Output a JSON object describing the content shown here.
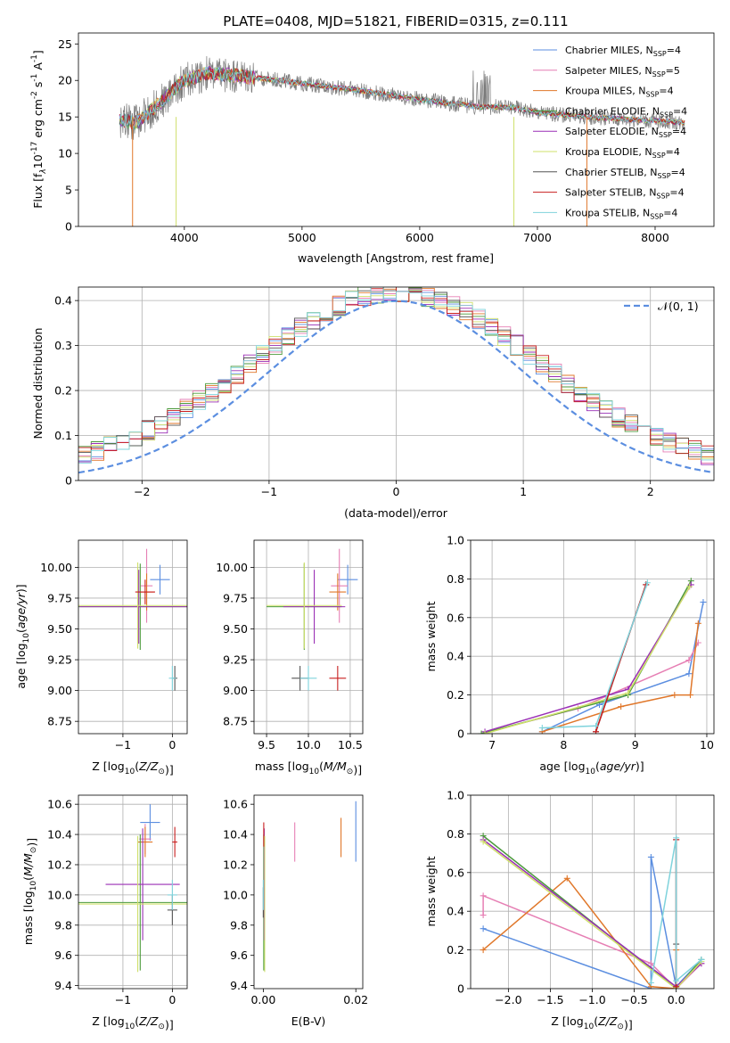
{
  "figure_title": "PLATE=0408, MJD=51821, FIBERID=0315, z=0.111",
  "colors": {
    "chabrier_miles": "#5b8ee0",
    "salpeter_miles": "#e67fb4",
    "kroupa_miles": "#e0772a",
    "chabrier_elodie": "#4c9a3c",
    "salpeter_elodie": "#9a2fb5",
    "kroupa_elodie": "#cfe06b",
    "chabrier_stelib": "#555555",
    "salpeter_stelib": "#c81e1e",
    "kroupa_stelib": "#7fd3dc",
    "gaussian": "#5b8ee0",
    "grid": "#b0b0b0"
  },
  "chart_data": [
    {
      "id": "spectrum",
      "type": "line",
      "title": "PLATE=0408, MJD=51821, FIBERID=0315, z=0.111",
      "xlabel": "wavelength [Angstrom, rest frame]",
      "ylabel_parts": [
        "Flux [f",
        "λ",
        "10",
        "-17",
        " erg cm",
        "-2",
        " s",
        "-1",
        " A",
        "-1",
        "]"
      ],
      "xlim": [
        3100,
        8500
      ],
      "ylim": [
        0,
        26.5
      ],
      "xticks": [
        4000,
        5000,
        6000,
        7000,
        8000
      ],
      "yticks": [
        0,
        5,
        10,
        15,
        20,
        25
      ],
      "grid": false,
      "legend_position": "upper-right",
      "legend": [
        {
          "label": "Chabrier MILES, N",
          "sub": "SSP",
          "suffix": "=4",
          "color_key": "chabrier_miles"
        },
        {
          "label": "Salpeter MILES, N",
          "sub": "SSP",
          "suffix": "=5",
          "color_key": "salpeter_miles"
        },
        {
          "label": "Kroupa MILES, N",
          "sub": "SSP",
          "suffix": "=4",
          "color_key": "kroupa_miles"
        },
        {
          "label": "Chabrier ELODIE, N",
          "sub": "SSP",
          "suffix": "=4",
          "color_key": "chabrier_elodie"
        },
        {
          "label": "Salpeter ELODIE, N",
          "sub": "SSP",
          "suffix": "=4",
          "color_key": "salpeter_elodie"
        },
        {
          "label": "Kroupa ELODIE, N",
          "sub": "SSP",
          "suffix": "=4",
          "color_key": "kroupa_elodie"
        },
        {
          "label": "Chabrier STELIB, N",
          "sub": "SSP",
          "suffix": "=4",
          "color_key": "chabrier_stelib"
        },
        {
          "label": "Salpeter STELIB, N",
          "sub": "SSP",
          "suffix": "=4",
          "color_key": "salpeter_stelib"
        },
        {
          "label": "Kroupa STELIB, N",
          "sub": "SSP",
          "suffix": "=4",
          "color_key": "kroupa_stelib"
        }
      ],
      "continuum": {
        "x": [
          3450,
          3600,
          3800,
          4000,
          4200,
          4500,
          5000,
          5500,
          6000,
          6500,
          6800,
          7000,
          7500,
          8000,
          8250
        ],
        "y": [
          14.5,
          14.3,
          17.0,
          20.0,
          21.0,
          20.6,
          19.6,
          18.6,
          17.4,
          16.4,
          16.3,
          15.6,
          14.9,
          14.5,
          14.2
        ]
      },
      "model_start": 3450,
      "model_end": 8250,
      "drops": [
        {
          "x": 3560,
          "color_key": "kroupa_miles"
        },
        {
          "x": 3930,
          "color_key": "kroupa_elodie"
        },
        {
          "x": 6800,
          "color_key": "kroupa_elodie"
        },
        {
          "x": 7420,
          "color_key": "kroupa_miles"
        }
      ]
    },
    {
      "id": "residuals",
      "type": "step",
      "xlabel": "(data-model)/error",
      "ylabel": "Normed distribution",
      "xlim": [
        -2.5,
        2.5
      ],
      "ylim": [
        0,
        0.43
      ],
      "xticks": [
        -2,
        -1,
        0,
        1,
        2
      ],
      "yticks": [
        0.0,
        0.1,
        0.2,
        0.3,
        0.4
      ],
      "grid": true,
      "legend_position": "upper-right",
      "gaussian_label": "𝒩(0, 1)",
      "bin_width": 0.1,
      "gaussian": {
        "mean": 0,
        "sigma": 1
      }
    },
    {
      "id": "age_vs_Z",
      "type": "errorbar",
      "xlabel": "Z [log10(Z/Z⊙)]",
      "ylabel": "age  [log10(age/yr)]",
      "xlim": [
        -1.9,
        0.3
      ],
      "ylim": [
        8.65,
        10.22
      ],
      "xticks": [
        -1,
        0
      ],
      "yticks": [
        8.75,
        9.0,
        9.25,
        9.5,
        9.75,
        10.0
      ],
      "grid": true,
      "points": [
        {
          "series": "chabrier_miles",
          "x": -0.25,
          "xerr": 0.2,
          "y": 9.9,
          "yerr": 0.12
        },
        {
          "series": "salpeter_miles",
          "x": -0.52,
          "xerr": 0.12,
          "y": 9.85,
          "yerr": 0.3
        },
        {
          "series": "kroupa_miles",
          "x": -0.52,
          "xerr": 0.15,
          "y": 9.8,
          "yerr": 0.15
        },
        {
          "series": "chabrier_elodie",
          "x": -0.65,
          "xerr": 1.25,
          "y": 9.68,
          "yerr": 0.35
        },
        {
          "series": "salpeter_elodie",
          "x": -0.68,
          "xerr": 1.2,
          "y": 9.68,
          "yerr": 0.3
        },
        {
          "series": "kroupa_elodie",
          "x": -0.7,
          "xerr": 1.25,
          "y": 9.69,
          "yerr": 0.35
        },
        {
          "series": "chabrier_stelib",
          "x": 0.05,
          "xerr": 0.05,
          "y": 9.1,
          "yerr": 0.1
        },
        {
          "series": "salpeter_stelib",
          "x": -0.55,
          "xerr": 0.2,
          "y": 9.8,
          "yerr": 0.1
        },
        {
          "series": "kroupa_stelib",
          "x": 0.0,
          "xerr": 0.07,
          "y": 9.1,
          "yerr": 0.1
        }
      ]
    },
    {
      "id": "age_vs_mass",
      "type": "errorbar",
      "xlabel": "mass [log10(M/M⊙)]",
      "ylabel": "",
      "xlim": [
        9.35,
        10.65
      ],
      "ylim": [
        8.65,
        10.22
      ],
      "xticks": [
        9.5,
        10.0,
        10.5
      ],
      "yticks": [
        8.75,
        9.0,
        9.25,
        9.5,
        9.75,
        10.0
      ],
      "grid": true,
      "points": [
        {
          "series": "chabrier_miles",
          "x": 10.47,
          "xerr": 0.12,
          "y": 9.9,
          "yerr": 0.12
        },
        {
          "series": "salpeter_miles",
          "x": 10.37,
          "xerr": 0.1,
          "y": 9.85,
          "yerr": 0.3
        },
        {
          "series": "kroupa_miles",
          "x": 10.35,
          "xerr": 0.1,
          "y": 9.8,
          "yerr": 0.15
        },
        {
          "series": "chabrier_elodie",
          "x": 9.95,
          "xerr": 0.45,
          "y": 9.68,
          "yerr": 0.35
        },
        {
          "series": "salpeter_elodie",
          "x": 10.07,
          "xerr": 0.37,
          "y": 9.68,
          "yerr": 0.3
        },
        {
          "series": "kroupa_elodie",
          "x": 9.95,
          "xerr": 0.45,
          "y": 9.69,
          "yerr": 0.35
        },
        {
          "series": "chabrier_stelib",
          "x": 9.9,
          "xerr": 0.1,
          "y": 9.1,
          "yerr": 0.1
        },
        {
          "series": "salpeter_stelib",
          "x": 10.35,
          "xerr": 0.1,
          "y": 9.1,
          "yerr": 0.1
        },
        {
          "series": "kroupa_stelib",
          "x": 10.0,
          "xerr": 0.1,
          "y": 9.1,
          "yerr": 0.1
        }
      ]
    },
    {
      "id": "weight_vs_age",
      "type": "line",
      "xlabel": "age  [log10(age/yr)]",
      "ylabel": "mass weight",
      "xlim": [
        6.7,
        10.1
      ],
      "ylim": [
        0,
        1
      ],
      "xticks": [
        7,
        8,
        9,
        10
      ],
      "yticks": [
        0.0,
        0.2,
        0.4,
        0.6,
        0.8,
        1.0
      ],
      "grid": true,
      "series": [
        {
          "name": "Chabrier MILES",
          "x": [
            7.7,
            8.5,
            9.75,
            9.95
          ],
          "y": [
            0.01,
            0.15,
            0.31,
            0.68
          ]
        },
        {
          "name": "Salpeter MILES",
          "x": [
            6.85,
            8.2,
            9.75,
            9.88
          ],
          "y": [
            0.0,
            0.13,
            0.38,
            0.47
          ]
        },
        {
          "name": "Kroupa MILES",
          "x": [
            7.7,
            8.8,
            9.55,
            9.77,
            9.88
          ],
          "y": [
            0.01,
            0.14,
            0.2,
            0.2,
            0.57
          ]
        },
        {
          "name": "Chabrier ELODIE",
          "x": [
            6.85,
            8.9,
            9.78
          ],
          "y": [
            0.0,
            0.2,
            0.79
          ]
        },
        {
          "name": "Salpeter ELODIE",
          "x": [
            6.9,
            8.9,
            9.78
          ],
          "y": [
            0.01,
            0.23,
            0.77
          ]
        },
        {
          "name": "Kroupa ELODIE",
          "x": [
            6.9,
            8.9,
            9.76
          ],
          "y": [
            0.0,
            0.21,
            0.76
          ]
        },
        {
          "name": "Chabrier STELIB",
          "x": [
            8.45,
            9.15
          ],
          "y": [
            0.01,
            0.77
          ]
        },
        {
          "name": "Salpeter STELIB",
          "x": [
            8.45,
            9.15
          ],
          "y": [
            0.01,
            0.77
          ]
        },
        {
          "name": "Kroupa STELIB",
          "x": [
            7.7,
            8.45,
            9.17
          ],
          "y": [
            0.03,
            0.04,
            0.78
          ]
        }
      ]
    },
    {
      "id": "mass_vs_Z",
      "type": "errorbar",
      "xlabel": "Z [log10(Z/Z⊙)]",
      "ylabel": "mass [log10(M/M⊙)]",
      "xlim": [
        -1.9,
        0.3
      ],
      "ylim": [
        9.38,
        10.66
      ],
      "xticks": [
        -1,
        0
      ],
      "yticks": [
        9.4,
        9.6,
        9.8,
        10.0,
        10.2,
        10.4,
        10.6
      ],
      "grid": true,
      "points": [
        {
          "series": "chabrier_miles",
          "x": -0.45,
          "xerr": 0.2,
          "y": 10.48,
          "yerr": 0.12
        },
        {
          "series": "salpeter_miles",
          "x": -0.55,
          "xerr": 0.12,
          "y": 10.37,
          "yerr": 0.1
        },
        {
          "series": "kroupa_miles",
          "x": -0.55,
          "xerr": 0.15,
          "y": 10.35,
          "yerr": 0.1
        },
        {
          "series": "chabrier_elodie",
          "x": -0.65,
          "xerr": 1.25,
          "y": 9.95,
          "yerr": 0.45
        },
        {
          "series": "salpeter_elodie",
          "x": -0.6,
          "xerr": 0.75,
          "y": 10.07,
          "yerr": 0.37
        },
        {
          "series": "kroupa_elodie",
          "x": -0.7,
          "xerr": 1.2,
          "y": 9.94,
          "yerr": 0.45
        },
        {
          "series": "chabrier_stelib",
          "x": 0.0,
          "xerr": 0.1,
          "y": 9.9,
          "yerr": 0.1
        },
        {
          "series": "salpeter_stelib",
          "x": 0.05,
          "xerr": 0.05,
          "y": 10.35,
          "yerr": 0.1
        },
        {
          "series": "kroupa_stelib",
          "x": 0.0,
          "xerr": 0.1,
          "y": 10.0,
          "yerr": 0.1
        }
      ]
    },
    {
      "id": "mass_vs_ebv",
      "type": "errorbar",
      "xlabel": "E(B-V)",
      "ylabel": "",
      "xlim": [
        -0.002,
        0.0215
      ],
      "ylim": [
        9.38,
        10.66
      ],
      "xticks": [
        0.0,
        0.02
      ],
      "yticks": [
        9.4,
        9.6,
        9.8,
        10.0,
        10.2,
        10.4,
        10.6
      ],
      "xtick_labels": [
        "0.00",
        "0.02"
      ],
      "grid": false,
      "points": [
        {
          "series": "chabrier_miles",
          "x": 0.02,
          "xerr": 0,
          "y": 10.42,
          "yerr": 0.2
        },
        {
          "series": "salpeter_miles",
          "x": 0.0068,
          "xerr": 0,
          "y": 10.35,
          "yerr": 0.13
        },
        {
          "series": "kroupa_miles",
          "x": 0.0168,
          "xerr": 0,
          "y": 10.38,
          "yerr": 0.13
        },
        {
          "series": "chabrier_elodie",
          "x": 0.0001,
          "xerr": 0,
          "y": 9.95,
          "yerr": 0.45
        },
        {
          "series": "salpeter_elodie",
          "x": 0.0002,
          "xerr": 0,
          "y": 10.07,
          "yerr": 0.37
        },
        {
          "series": "kroupa_elodie",
          "x": 0.0003,
          "xerr": 0,
          "y": 9.94,
          "yerr": 0.45
        },
        {
          "series": "chabrier_stelib",
          "x": 0.0,
          "xerr": 0,
          "y": 9.95,
          "yerr": 0.1
        },
        {
          "series": "salpeter_stelib",
          "x": 0.0001,
          "xerr": 0,
          "y": 10.4,
          "yerr": 0.08
        },
        {
          "series": "kroupa_stelib",
          "x": 0.0,
          "xerr": 0,
          "y": 10.0,
          "yerr": 0.1
        }
      ]
    },
    {
      "id": "weight_vs_Z",
      "type": "line",
      "xlabel": "Z [log10(Z/Z⊙)]",
      "ylabel": "mass weight",
      "xlim": [
        -2.45,
        0.45
      ],
      "ylim": [
        0,
        1
      ],
      "xticks": [
        -2.0,
        -1.5,
        -1.0,
        -0.5,
        0.0
      ],
      "xtick_labels": [
        "−2.0",
        "−1.5",
        "−1.0",
        "−0.5",
        "0.0"
      ],
      "yticks": [
        0.0,
        0.2,
        0.4,
        0.6,
        0.8,
        1.0
      ],
      "grid": true,
      "series": [
        {
          "name": "Chabrier MILES",
          "x": [
            -2.3,
            -0.3,
            -0.3,
            0.0,
            0.3
          ],
          "y": [
            0.31,
            0.0,
            0.68,
            0.01,
            0.15
          ]
        },
        {
          "name": "Salpeter MILES",
          "x": [
            -2.3,
            -2.3,
            -0.3,
            0.0,
            0.3
          ],
          "y": [
            0.38,
            0.48,
            0.13,
            0.0,
            0.13
          ]
        },
        {
          "name": "Kroupa MILES",
          "x": [
            -2.3,
            -1.3,
            -0.3,
            0.0,
            0.0
          ],
          "y": [
            0.2,
            0.57,
            0.01,
            0.0,
            0.2
          ]
        },
        {
          "name": "Chabrier ELODIE",
          "x": [
            -2.3,
            0.0,
            0.3
          ],
          "y": [
            0.79,
            0.0,
            0.15
          ]
        },
        {
          "name": "Salpeter ELODIE",
          "x": [
            -2.3,
            0.0,
            0.3
          ],
          "y": [
            0.77,
            0.01,
            0.13
          ]
        },
        {
          "name": "Kroupa ELODIE",
          "x": [
            -2.3,
            0.0,
            0.3
          ],
          "y": [
            0.76,
            0.0,
            0.14
          ]
        },
        {
          "name": "Chabrier STELIB",
          "x": [
            0.0,
            0.0,
            0.0
          ],
          "y": [
            0.01,
            0.23,
            0.77
          ]
        },
        {
          "name": "Salpeter STELIB",
          "x": [
            0.0,
            0.0
          ],
          "y": [
            0.01,
            0.77
          ]
        },
        {
          "name": "Kroupa STELIB",
          "x": [
            -0.3,
            0.0,
            0.0,
            0.3
          ],
          "y": [
            0.03,
            0.78,
            0.04,
            0.15
          ]
        }
      ]
    }
  ]
}
